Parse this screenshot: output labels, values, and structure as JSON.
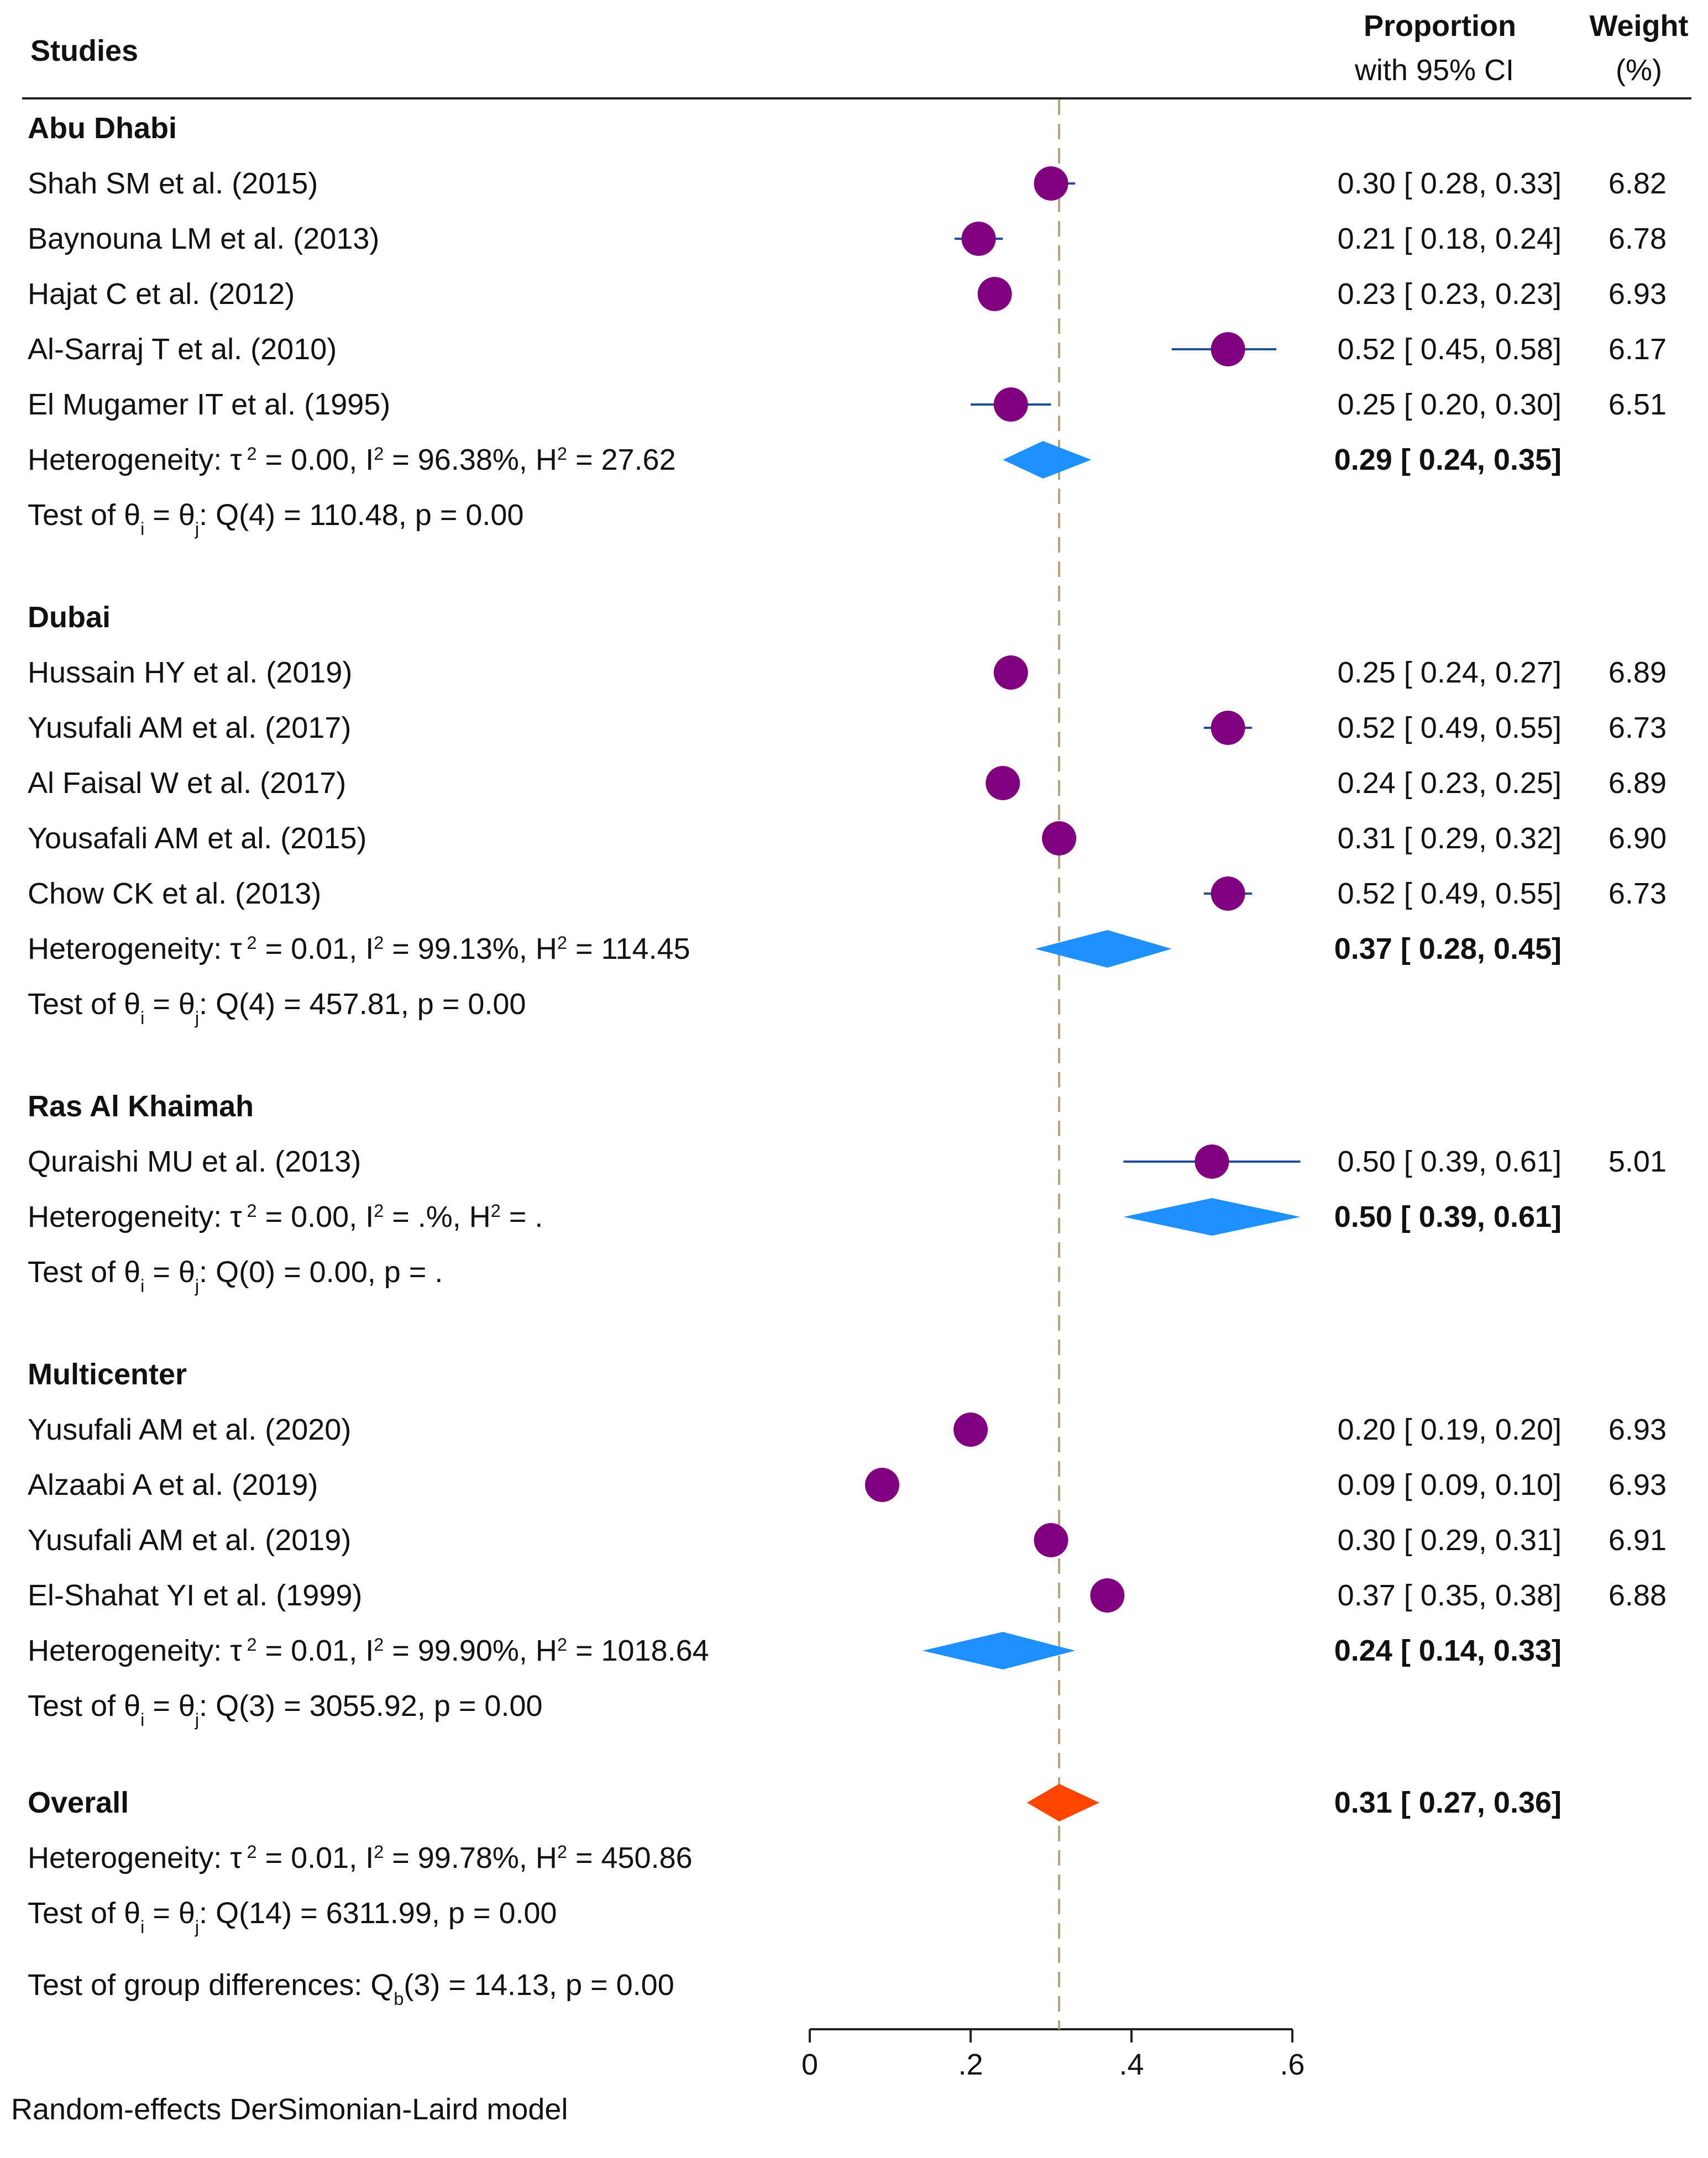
{
  "chart_data": {
    "type": "forest",
    "header": {
      "studies": "Studies",
      "proportion": "Proportion",
      "ci": "with 95% CI",
      "weight": "Weight",
      "weight_unit": "(%)"
    },
    "colors": {
      "study_marker": "#800080",
      "study_ci": "#1f4e99",
      "subgroup_diamond": "#1e90ff",
      "overall_diamond": "#ff4500",
      "reference_line": "#b8a47a",
      "text": "#111111"
    },
    "overall_line": 0.31,
    "groups": [
      {
        "name": "Abu Dhabi",
        "studies": [
          {
            "label": "Shah SM et al. (2015)",
            "es": 0.3,
            "lo": 0.28,
            "hi": 0.33,
            "ci_text": "0.30 [ 0.28,  0.33]",
            "weight": "6.82"
          },
          {
            "label": "Baynouna LM et al. (2013)",
            "es": 0.21,
            "lo": 0.18,
            "hi": 0.24,
            "ci_text": "0.21 [ 0.18,  0.24]",
            "weight": "6.78"
          },
          {
            "label": "Hajat C et al. (2012)",
            "es": 0.23,
            "lo": 0.23,
            "hi": 0.23,
            "ci_text": "0.23 [ 0.23,  0.23]",
            "weight": "6.93"
          },
          {
            "label": "Al-Sarraj T et al. (2010)",
            "es": 0.52,
            "lo": 0.45,
            "hi": 0.58,
            "ci_text": "0.52 [ 0.45,  0.58]",
            "weight": "6.17"
          },
          {
            "label": "El Mugamer IT et al. (1995)",
            "es": 0.25,
            "lo": 0.2,
            "hi": 0.3,
            "ci_text": "0.25 [ 0.20,  0.30]",
            "weight": "6.51"
          }
        ],
        "summary": {
          "es": 0.29,
          "lo": 0.24,
          "hi": 0.35,
          "ci_text": "0.29 [ 0.24,  0.35]"
        },
        "heterogeneity": {
          "prefix": "Heterogeneity: τ",
          "tau_sup": "2",
          "tau_val": " = 0.00, I",
          "i_sup": "2",
          "i_val": " = 96.38%, H",
          "h_sup": "2",
          "h_val": " = 27.62"
        },
        "test": {
          "prefix": "Test of θ",
          "sub1": "i",
          "mid": " = θ",
          "sub2": "j",
          "suffix": ": Q(4) = 110.48, p = 0.00"
        }
      },
      {
        "name": "Dubai",
        "studies": [
          {
            "label": "Hussain HY et al. (2019)",
            "es": 0.25,
            "lo": 0.24,
            "hi": 0.27,
            "ci_text": "0.25 [ 0.24,  0.27]",
            "weight": "6.89"
          },
          {
            "label": "Yusufali AM et al. (2017)",
            "es": 0.52,
            "lo": 0.49,
            "hi": 0.55,
            "ci_text": "0.52 [ 0.49,  0.55]",
            "weight": "6.73"
          },
          {
            "label": "Al Faisal W et al. (2017)",
            "es": 0.24,
            "lo": 0.23,
            "hi": 0.25,
            "ci_text": "0.24 [ 0.23,  0.25]",
            "weight": "6.89"
          },
          {
            "label": "Yousafali AM et al. (2015)",
            "es": 0.31,
            "lo": 0.29,
            "hi": 0.32,
            "ci_text": "0.31 [ 0.29,  0.32]",
            "weight": "6.90"
          },
          {
            "label": "Chow CK et al. (2013)",
            "es": 0.52,
            "lo": 0.49,
            "hi": 0.55,
            "ci_text": "0.52 [ 0.49,  0.55]",
            "weight": "6.73"
          }
        ],
        "summary": {
          "es": 0.37,
          "lo": 0.28,
          "hi": 0.45,
          "ci_text": "0.37 [ 0.28,  0.45]"
        },
        "heterogeneity": {
          "prefix": "Heterogeneity: τ",
          "tau_sup": "2",
          "tau_val": " = 0.01, I",
          "i_sup": "2",
          "i_val": " = 99.13%, H",
          "h_sup": "2",
          "h_val": " = 114.45"
        },
        "test": {
          "prefix": "Test of θ",
          "sub1": "i",
          "mid": " = θ",
          "sub2": "j",
          "suffix": ": Q(4) = 457.81, p = 0.00"
        }
      },
      {
        "name": "Ras Al Khaimah",
        "studies": [
          {
            "label": "Quraishi MU et al. (2013)",
            "es": 0.5,
            "lo": 0.39,
            "hi": 0.61,
            "ci_text": "0.50 [ 0.39,  0.61]",
            "weight": "5.01"
          }
        ],
        "summary": {
          "es": 0.5,
          "lo": 0.39,
          "hi": 0.61,
          "ci_text": "0.50 [ 0.39,  0.61]"
        },
        "heterogeneity": {
          "prefix": "Heterogeneity: τ",
          "tau_sup": "2",
          "tau_val": " = 0.00, I",
          "i_sup": "2",
          "i_val": " = .%, H",
          "h_sup": "2",
          "h_val": " = ."
        },
        "test": {
          "prefix": "Test of θ",
          "sub1": "i",
          "mid": " = θ",
          "sub2": "j",
          "suffix": ": Q(0) = 0.00, p = ."
        }
      },
      {
        "name": "Multicenter",
        "studies": [
          {
            "label": "Yusufali AM et al. (2020)",
            "es": 0.2,
            "lo": 0.19,
            "hi": 0.2,
            "ci_text": "0.20 [ 0.19,  0.20]",
            "weight": "6.93"
          },
          {
            "label": "Alzaabi A et al. (2019)",
            "es": 0.09,
            "lo": 0.09,
            "hi": 0.1,
            "ci_text": "0.09 [ 0.09,  0.10]",
            "weight": "6.93"
          },
          {
            "label": "Yusufali AM et al. (2019)",
            "es": 0.3,
            "lo": 0.29,
            "hi": 0.31,
            "ci_text": "0.30 [ 0.29,  0.31]",
            "weight": "6.91"
          },
          {
            "label": "El-Shahat YI et al. (1999)",
            "es": 0.37,
            "lo": 0.35,
            "hi": 0.38,
            "ci_text": "0.37 [ 0.35,  0.38]",
            "weight": "6.88"
          }
        ],
        "summary": {
          "es": 0.24,
          "lo": 0.14,
          "hi": 0.33,
          "ci_text": "0.24 [ 0.14,  0.33]"
        },
        "heterogeneity": {
          "prefix": "Heterogeneity: τ",
          "tau_sup": "2",
          "tau_val": " = 0.01, I",
          "i_sup": "2",
          "i_val": " = 99.90%, H",
          "h_sup": "2",
          "h_val": " = 1018.64"
        },
        "test": {
          "prefix": "Test of θ",
          "sub1": "i",
          "mid": " = θ",
          "sub2": "j",
          "suffix": ": Q(3) = 3055.92, p = 0.00"
        }
      }
    ],
    "overall": {
      "name": "Overall",
      "es": 0.31,
      "lo": 0.27,
      "hi": 0.36,
      "ci_text": "0.31 [ 0.27,  0.36]",
      "heterogeneity": {
        "prefix": "Heterogeneity: τ",
        "tau_sup": "2",
        "tau_val": " = 0.01, I",
        "i_sup": "2",
        "i_val": " = 99.78%, H",
        "h_sup": "2",
        "h_val": " = 450.86"
      },
      "test": {
        "prefix": "Test of θ",
        "sub1": "i",
        "mid": " = θ",
        "sub2": "j",
        "suffix": ": Q(14) = 6311.99, p = 0.00"
      }
    },
    "group_test": {
      "prefix": "Test of group differences: Q",
      "sub": "b",
      "suffix": "(3) = 14.13, p = 0.00"
    },
    "x_axis": {
      "range": [
        0,
        0.6
      ],
      "ticks": [
        0,
        0.2,
        0.4,
        0.6
      ],
      "tick_labels": [
        "0",
        ".2",
        ".4",
        ".6"
      ]
    },
    "footnote": "Random-effects DerSimonian-Laird model"
  }
}
